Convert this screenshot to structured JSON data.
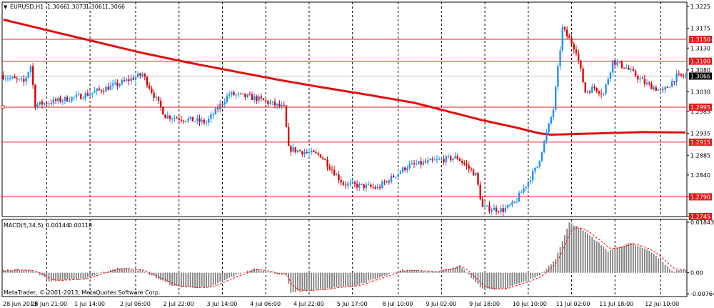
{
  "window": {
    "symbol_title": "EURUSD,H1",
    "ohlc": [
      "1.3066",
      "1.3073",
      "1.3061",
      "1.3066"
    ],
    "menu_glyph": "▼"
  },
  "indicator": {
    "title": "MACD(5,34,5)",
    "values": [
      "0.00144",
      "0.00118"
    ],
    "scale": [
      "0.01843",
      "0.00",
      "-0.00764"
    ]
  },
  "copyright": "MetaTrader, © 2001-2013, MetaQuotes Software Corp.",
  "colors": {
    "bull": "#1e90ff",
    "bear": "#dd0000",
    "ma": "#e01010",
    "hline": "#e81a1a",
    "grid": "#000000",
    "histogram": "#808080",
    "signal": "#ff0000",
    "price_tag": "#000000"
  },
  "price_axis": {
    "ticks": [
      "1.3225",
      "1.3175",
      "1.3130",
      "1.3080",
      "1.3030",
      "1.2985",
      "1.2935",
      "1.2885",
      "1.2840",
      "1.2790",
      "1.2745"
    ],
    "hline_tags": [
      "1.3150",
      "1.3100",
      "1.2995",
      "1.2915",
      "1.2790",
      "1.2745"
    ],
    "current_price": "1.3066"
  },
  "time_axis": {
    "labels": [
      "28 Jun 2013",
      "28 Jun 21:00",
      "1 Jul 14:00",
      "2 Jul 06:00",
      "2 Jul 22:00",
      "3 Jul 14:00",
      "4 Jul 06:00",
      "4 Jul 22:00",
      "5 Jul 17:00",
      "8 Jul 10:00",
      "9 Jul 02:00",
      "9 Jul 18:00",
      "10 Jul 10:00",
      "11 Jul 02:00",
      "11 Jul 18:00",
      "12 Jul 10:00"
    ]
  },
  "chart_data": [
    {
      "type": "candlestick",
      "symbol": "EURUSD",
      "timeframe": "H1",
      "ylim": [
        1.2745,
        1.3235
      ],
      "horizontal_lines": [
        1.315,
        1.31,
        1.2995,
        1.2915,
        1.279
      ],
      "moving_average_path": [
        [
          0,
          1.3195
        ],
        [
          20,
          1.317
        ],
        [
          40,
          1.3145
        ],
        [
          60,
          1.312
        ],
        [
          80,
          1.3098
        ],
        [
          100,
          1.3078
        ],
        [
          120,
          1.3058
        ],
        [
          140,
          1.304
        ],
        [
          160,
          1.3023
        ],
        [
          180,
          1.3005
        ],
        [
          195,
          1.2985
        ],
        [
          210,
          1.2965
        ],
        [
          225,
          1.2948
        ],
        [
          235,
          1.2935
        ],
        [
          240,
          1.2932
        ],
        [
          260,
          1.2935
        ],
        [
          280,
          1.2938
        ],
        [
          300,
          1.2937
        ]
      ],
      "key_points": [
        [
          0,
          1.3068
        ],
        [
          10,
          1.3052
        ],
        [
          13,
          1.309
        ],
        [
          15,
          1.3
        ],
        [
          35,
          1.302
        ],
        [
          50,
          1.3045
        ],
        [
          62,
          1.307
        ],
        [
          72,
          1.2975
        ],
        [
          90,
          1.296
        ],
        [
          100,
          1.3025
        ],
        [
          112,
          1.3015
        ],
        [
          124,
          1.2993
        ],
        [
          126,
          1.29
        ],
        [
          140,
          1.2885
        ],
        [
          150,
          1.282
        ],
        [
          165,
          1.281
        ],
        [
          178,
          1.286
        ],
        [
          193,
          1.2875
        ],
        [
          200,
          1.288
        ],
        [
          208,
          1.284
        ],
        [
          211,
          1.2765
        ],
        [
          220,
          1.276
        ],
        [
          225,
          1.2775
        ],
        [
          235,
          1.286
        ],
        [
          242,
          1.299
        ],
        [
          246,
          1.3175
        ],
        [
          252,
          1.3125
        ],
        [
          256,
          1.303
        ],
        [
          260,
          1.304
        ],
        [
          264,
          1.3025
        ],
        [
          268,
          1.31
        ],
        [
          274,
          1.3085
        ],
        [
          282,
          1.305
        ],
        [
          290,
          1.303
        ],
        [
          296,
          1.3065
        ],
        [
          300,
          1.3066
        ]
      ]
    },
    {
      "type": "bar",
      "indicator": "MACD(5,34,5)",
      "ylim": [
        -0.00764,
        0.01843
      ],
      "key_points": [
        [
          0,
          0.001
        ],
        [
          10,
          0.0012
        ],
        [
          15,
          0.0
        ],
        [
          20,
          -0.003
        ],
        [
          35,
          -0.0022
        ],
        [
          50,
          0.0018
        ],
        [
          60,
          0.001
        ],
        [
          75,
          -0.005
        ],
        [
          90,
          -0.0055
        ],
        [
          100,
          -0.0015
        ],
        [
          110,
          0.0015
        ],
        [
          124,
          -0.001
        ],
        [
          126,
          -0.007
        ],
        [
          140,
          -0.006
        ],
        [
          155,
          -0.0045
        ],
        [
          175,
          0.001
        ],
        [
          190,
          0.0005
        ],
        [
          200,
          0.0025
        ],
        [
          210,
          -0.006
        ],
        [
          220,
          -0.0058
        ],
        [
          235,
          -0.001
        ],
        [
          242,
          0.005
        ],
        [
          248,
          0.0184
        ],
        [
          255,
          0.015
        ],
        [
          265,
          0.008
        ],
        [
          275,
          0.011
        ],
        [
          285,
          0.007
        ],
        [
          293,
          0.0005
        ],
        [
          300,
          0.0012
        ]
      ]
    }
  ]
}
